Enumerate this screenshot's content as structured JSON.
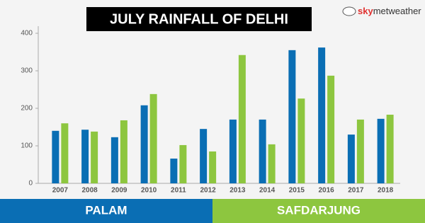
{
  "chart_data": {
    "type": "bar",
    "title": "JULY RAINFALL OF DELHI",
    "logo": [
      "sky",
      "metweather"
    ],
    "categories": [
      "2007",
      "2008",
      "2009",
      "2010",
      "2011",
      "2012",
      "2013",
      "2014",
      "2015",
      "2016",
      "2017",
      "2018"
    ],
    "series": [
      {
        "name": "PALAM",
        "color": "#0a6eb4",
        "values": [
          140,
          143,
          123,
          208,
          66,
          145,
          170,
          170,
          355,
          362,
          130,
          172
        ]
      },
      {
        "name": "SAFDARJUNG",
        "color": "#8dc63f",
        "values": [
          160,
          138,
          168,
          238,
          102,
          85,
          342,
          104,
          226,
          287,
          170,
          183
        ]
      }
    ],
    "ylim": [
      0,
      400
    ],
    "yticks": [
      0,
      100,
      200,
      300,
      400
    ],
    "grid": false
  }
}
